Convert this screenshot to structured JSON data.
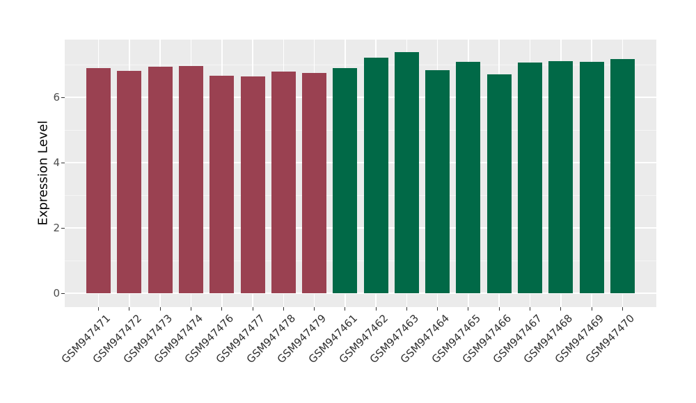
{
  "chart_data": {
    "type": "bar",
    "title": "",
    "xlabel": "",
    "ylabel": "Expression Level",
    "legend": "none",
    "grid": "on",
    "panel_background": "#EBEBEB",
    "grid_major_color": "#FFFFFF",
    "grid_minor_color": "rgba(255,255,255,0.55)",
    "axis_text_color": "#4d4d4d",
    "tick_color": "#333333",
    "yticks": [
      0,
      2,
      4,
      6
    ],
    "yticks_minor": [
      1,
      3,
      5,
      7
    ],
    "ylim": [
      0,
      7.77
    ],
    "group_colors": {
      "left_group": "#9A4151",
      "right_group": "#016947"
    },
    "categories": [
      "GSM947471",
      "GSM947472",
      "GSM947473",
      "GSM947474",
      "GSM947476",
      "GSM947477",
      "GSM947478",
      "GSM947479",
      "GSM947461",
      "GSM947462",
      "GSM947463",
      "GSM947464",
      "GSM947465",
      "GSM947466",
      "GSM947467",
      "GSM947468",
      "GSM947469",
      "GSM947470"
    ],
    "values": [
      6.9,
      6.81,
      6.93,
      6.96,
      6.67,
      6.64,
      6.79,
      6.75,
      6.9,
      7.21,
      7.38,
      6.82,
      7.08,
      6.71,
      7.06,
      7.1,
      7.08,
      7.16
    ],
    "bar_groups": [
      "left_group",
      "left_group",
      "left_group",
      "left_group",
      "left_group",
      "left_group",
      "left_group",
      "left_group",
      "right_group",
      "right_group",
      "right_group",
      "right_group",
      "right_group",
      "right_group",
      "right_group",
      "right_group",
      "right_group",
      "right_group"
    ]
  }
}
